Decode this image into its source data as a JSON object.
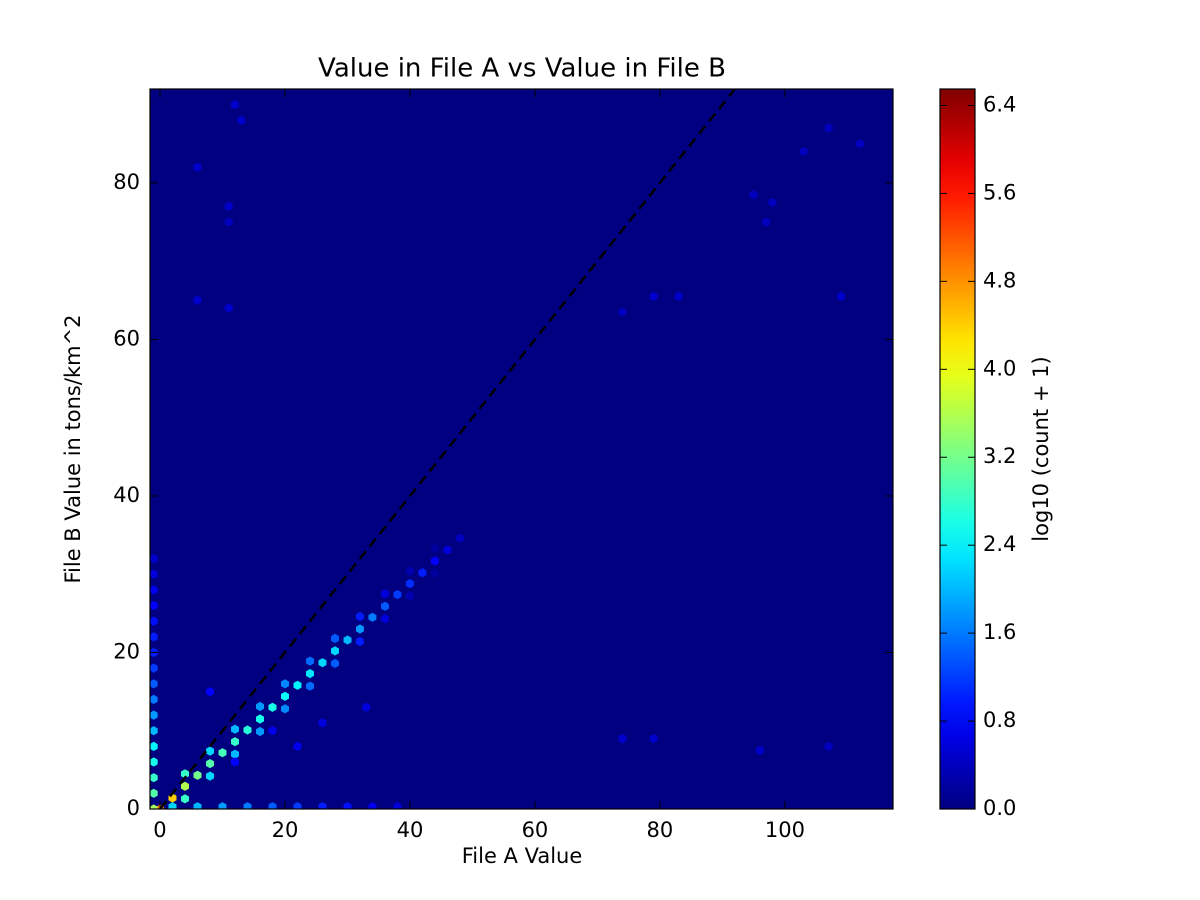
{
  "chart_data": {
    "type": "hexbin",
    "title": "Value in File A vs Value in File B",
    "x_label": "File A Value",
    "y_label": "File B Value in tons/km^2",
    "colorbar_label": "log10 (count + 1)",
    "colormap": "jet",
    "diagonal": true,
    "xlim": [
      -1.6,
      117.3
    ],
    "ylim": [
      0,
      92
    ],
    "xticks": [
      0,
      20,
      40,
      60,
      80,
      100
    ],
    "yticks": [
      0,
      20,
      40,
      60,
      80
    ],
    "clim": [
      0,
      6.55
    ],
    "cticks": [
      {
        "value": 0,
        "label": "0.0"
      },
      {
        "value": 0.8,
        "label": "0.8"
      },
      {
        "value": 1.6,
        "label": "1.6"
      },
      {
        "value": 2.4,
        "label": "2.4"
      },
      {
        "value": 3.2,
        "label": "3.2"
      },
      {
        "value": 4.0,
        "label": "4.0"
      },
      {
        "value": 4.8,
        "label": "4.8"
      },
      {
        "value": 5.6,
        "label": "5.6"
      },
      {
        "value": 6.4,
        "label": "6.4"
      }
    ],
    "x": [
      0,
      2,
      4,
      6,
      8,
      10,
      12,
      14,
      16,
      18,
      20,
      22,
      24,
      26,
      28,
      30,
      32,
      34,
      36,
      38,
      40,
      42,
      44,
      46,
      48,
      4,
      8,
      12,
      16,
      20,
      24,
      28,
      32,
      36,
      40,
      44,
      4,
      8,
      12,
      16,
      20,
      24,
      28,
      32,
      36,
      40,
      44,
      -1,
      -1,
      -1,
      -1,
      -1,
      -1,
      -1,
      -1,
      -1,
      -1,
      -1,
      -1,
      -1,
      -1,
      -1,
      -1,
      -1,
      2,
      6,
      10,
      14,
      18,
      22,
      26,
      30,
      34,
      38,
      12,
      13,
      6,
      11,
      11,
      6,
      11,
      79,
      83,
      74,
      109,
      95,
      97,
      98,
      103,
      107,
      112,
      74,
      79,
      96,
      107,
      33,
      26,
      22,
      18,
      12,
      8
    ],
    "y": [
      0,
      1.4,
      2.9,
      4.3,
      5.8,
      7.2,
      8.6,
      10.1,
      11.5,
      13,
      14.4,
      15.8,
      17.3,
      18.7,
      20.2,
      21.6,
      23,
      24.5,
      25.9,
      27.4,
      28.8,
      30.2,
      31.7,
      33.1,
      34.6,
      4.5,
      7.4,
      10.2,
      13.1,
      16,
      18.9,
      21.8,
      24.6,
      27.5,
      30.4,
      33.3,
      1.3,
      4.2,
      7,
      9.9,
      12.8,
      15.7,
      18.6,
      21.4,
      24.3,
      27.2,
      30.1,
      0,
      2,
      4,
      6,
      8,
      10,
      12,
      14,
      16,
      18,
      20,
      22,
      24,
      26,
      28,
      30,
      32,
      0.3,
      0.3,
      0.3,
      0.3,
      0.3,
      0.3,
      0.3,
      0.3,
      0.3,
      0.3,
      90,
      88,
      82,
      77,
      75,
      65,
      64,
      65.5,
      65.5,
      63.5,
      65.5,
      78.5,
      75,
      77.5,
      84,
      87,
      85,
      9,
      9,
      7.5,
      8,
      13,
      11,
      8,
      10,
      6,
      15
    ],
    "values": [
      5.0,
      4.4,
      3.6,
      3.2,
      3.0,
      2.9,
      2.8,
      2.7,
      2.6,
      2.6,
      2.5,
      2.4,
      2.3,
      2.2,
      2.2,
      2.0,
      1.8,
      1.6,
      1.4,
      1.2,
      1.1,
      1.0,
      0.8,
      0.6,
      0.4,
      2.8,
      2.2,
      2.0,
      1.8,
      1.7,
      1.5,
      1.4,
      1.0,
      0.6,
      0.3,
      0.2,
      2.8,
      2.2,
      2.0,
      1.8,
      1.7,
      1.5,
      1.4,
      1.0,
      0.6,
      0.3,
      0.2,
      3.5,
      3.0,
      2.8,
      2.6,
      2.4,
      2.0,
      1.8,
      1.6,
      1.4,
      1.2,
      1.0,
      1.0,
      0.9,
      0.8,
      0.7,
      0.6,
      0.5,
      2.2,
      2.0,
      1.8,
      1.6,
      1.4,
      1.2,
      1.0,
      0.9,
      0.7,
      0.6,
      0.5,
      0.5,
      0.5,
      0.5,
      0.4,
      0.5,
      0.5,
      0.5,
      0.5,
      0.4,
      0.5,
      0.4,
      0.4,
      0.4,
      0.4,
      0.4,
      0.4,
      0.5,
      0.5,
      0.5,
      0.4,
      0.6,
      0.6,
      0.7,
      0.7,
      0.8,
      0.8
    ]
  }
}
